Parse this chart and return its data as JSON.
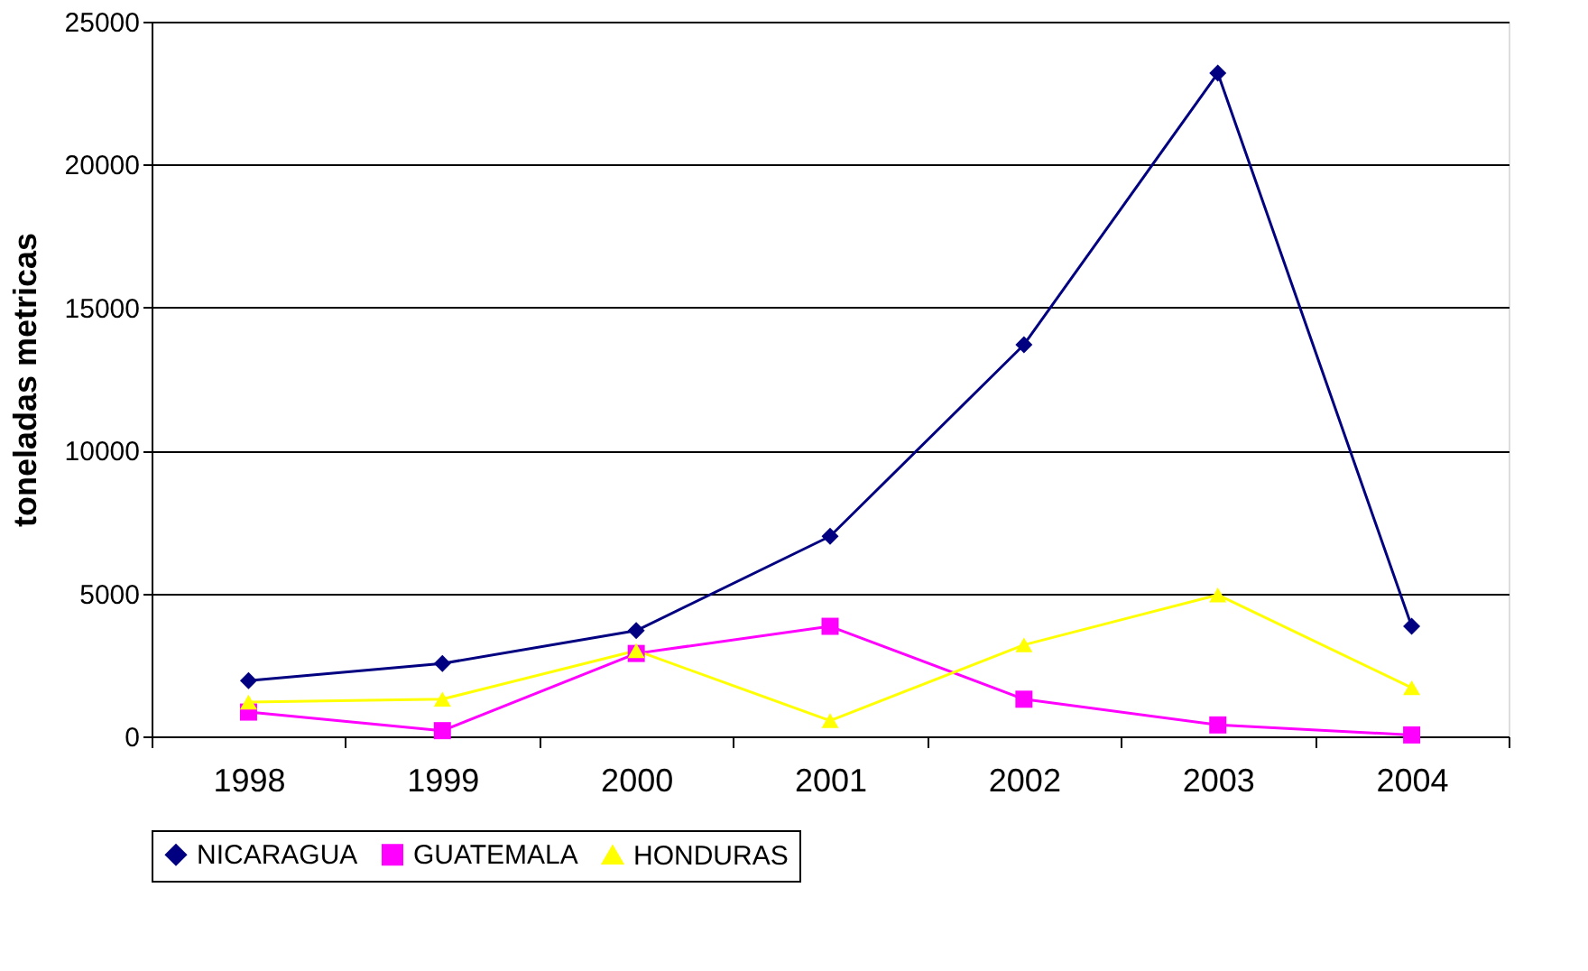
{
  "chart_data": {
    "type": "line",
    "ylabel": "toneladas metricas",
    "categories": [
      "1998",
      "1999",
      "2000",
      "2001",
      "2002",
      "2003",
      "2004"
    ],
    "series": [
      {
        "name": "NICARAGUA",
        "color": "#000080",
        "marker": "diamond",
        "values": [
          1950,
          2550,
          3700,
          7000,
          13700,
          23200,
          3850
        ]
      },
      {
        "name": "GUATEMALA",
        "color": "#ff00ff",
        "marker": "square",
        "values": [
          850,
          200,
          2900,
          3850,
          1300,
          400,
          50
        ]
      },
      {
        "name": "HONDURAS",
        "color": "#ffff00",
        "marker": "triangle",
        "values": [
          1200,
          1300,
          3000,
          550,
          3200,
          4950,
          1700
        ]
      }
    ],
    "ylim": [
      0,
      25000
    ],
    "yticks": [
      0,
      5000,
      10000,
      15000,
      20000,
      25000
    ],
    "grid": "y",
    "legend": "bottom",
    "line_style": "solid"
  }
}
